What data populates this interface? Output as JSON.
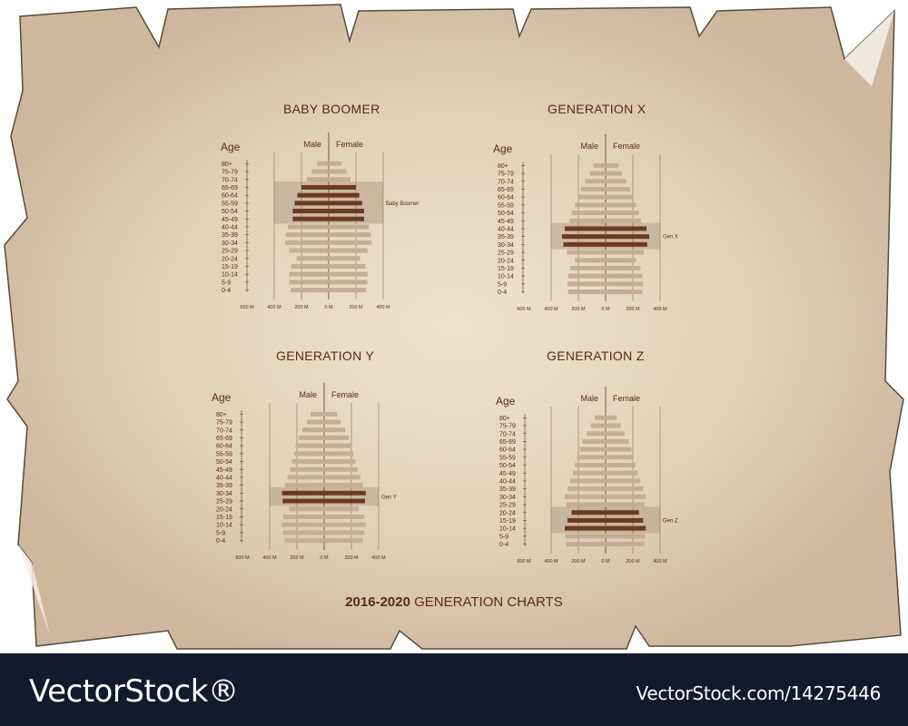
{
  "main_title": {
    "years": "2016-2020",
    "text": "GENERATION CHARTS"
  },
  "footer": {
    "brand": "VectorStock®",
    "image_id": "VectorStock.com/14275446"
  },
  "colors": {
    "paper": "#d7c4ad",
    "paper_light": "#efe2cf",
    "bar_light": "#c4ad96",
    "bar_dark": "#6b3a20",
    "band": "#b59e88",
    "text": "#5a2a14",
    "footer_bg": "#131a2e"
  },
  "age_groups": [
    "80+",
    "75-79",
    "70-74",
    "65-69",
    "60-64",
    "55-59",
    "50-54",
    "45-49",
    "40-44",
    "35-39",
    "30-34",
    "25-29",
    "20-24",
    "15-19",
    "10-14",
    "5-9",
    "0-4"
  ],
  "axis": {
    "age_label": "Age",
    "male_label": "Male",
    "female_label": "Female",
    "ticks": [
      "600 M",
      "400 M",
      "200 M",
      "0 M",
      "200 M",
      "400 M"
    ]
  },
  "chart_data": [
    {
      "type": "bar",
      "title": "BABY BOOMER",
      "highlight_label": "Baby Boomer",
      "highlight_groups": [
        "65-69",
        "60-64",
        "55-59",
        "50-54",
        "45-49"
      ],
      "categories": [
        "80+",
        "75-79",
        "70-74",
        "65-69",
        "60-64",
        "55-59",
        "50-54",
        "45-49",
        "40-44",
        "35-39",
        "30-34",
        "25-29",
        "20-24",
        "15-19",
        "10-14",
        "5-9",
        "0-4"
      ],
      "series": [
        {
          "name": "Male",
          "values": [
            85,
            125,
            160,
            200,
            230,
            250,
            265,
            265,
            300,
            315,
            320,
            290,
            235,
            275,
            290,
            290,
            280
          ]
        },
        {
          "name": "Female",
          "values": [
            95,
            130,
            160,
            200,
            225,
            245,
            260,
            260,
            295,
            310,
            315,
            285,
            230,
            270,
            285,
            285,
            275
          ]
        }
      ]
    },
    {
      "type": "bar",
      "title": "GENERATION   X",
      "highlight_label": "Gen X",
      "highlight_groups": [
        "40-44",
        "35-39",
        "30-34"
      ],
      "categories": [
        "80+",
        "75-79",
        "70-74",
        "65-69",
        "60-64",
        "55-59",
        "50-54",
        "45-49",
        "40-44",
        "35-39",
        "30-34",
        "25-29",
        "20-24",
        "15-19",
        "10-14",
        "5-9",
        "0-4"
      ],
      "series": [
        {
          "name": "Male",
          "values": [
            90,
            115,
            150,
            180,
            205,
            225,
            250,
            265,
            300,
            320,
            310,
            285,
            225,
            260,
            275,
            280,
            275
          ]
        },
        {
          "name": "Female",
          "values": [
            95,
            120,
            150,
            180,
            205,
            225,
            245,
            260,
            300,
            320,
            305,
            280,
            225,
            255,
            270,
            275,
            270
          ]
        }
      ]
    },
    {
      "type": "bar",
      "title": "GENERATION   Y",
      "highlight_label": "Gen Y",
      "highlight_groups": [
        "30-34",
        "25-29"
      ],
      "categories": [
        "80+",
        "75-79",
        "70-74",
        "65-69",
        "60-64",
        "55-59",
        "50-54",
        "45-49",
        "40-44",
        "35-39",
        "30-34",
        "25-29",
        "20-24",
        "15-19",
        "10-14",
        "5-9",
        "0-4"
      ],
      "series": [
        {
          "name": "Male",
          "values": [
            100,
            125,
            160,
            185,
            210,
            220,
            235,
            250,
            270,
            290,
            310,
            305,
            260,
            300,
            310,
            300,
            290
          ]
        },
        {
          "name": "Female",
          "values": [
            95,
            120,
            155,
            180,
            205,
            215,
            230,
            245,
            265,
            285,
            305,
            300,
            255,
            295,
            305,
            295,
            285
          ]
        }
      ]
    },
    {
      "type": "bar",
      "title": "GENERATION   Z",
      "highlight_label": "Gen Z",
      "highlight_groups": [
        "20-24",
        "15-19",
        "10-14"
      ],
      "categories": [
        "80+",
        "75-79",
        "70-74",
        "65-69",
        "60-64",
        "55-59",
        "50-54",
        "45-49",
        "40-44",
        "35-39",
        "30-34",
        "25-29",
        "20-24",
        "15-19",
        "10-14",
        "5-9",
        "0-4"
      ],
      "series": [
        {
          "name": "Male",
          "values": [
            80,
            110,
            140,
            170,
            190,
            210,
            225,
            240,
            260,
            280,
            300,
            290,
            250,
            280,
            300,
            295,
            290
          ]
        },
        {
          "name": "Female",
          "values": [
            80,
            110,
            140,
            170,
            190,
            205,
            220,
            235,
            255,
            275,
            295,
            285,
            245,
            275,
            295,
            290,
            285
          ]
        }
      ]
    }
  ]
}
